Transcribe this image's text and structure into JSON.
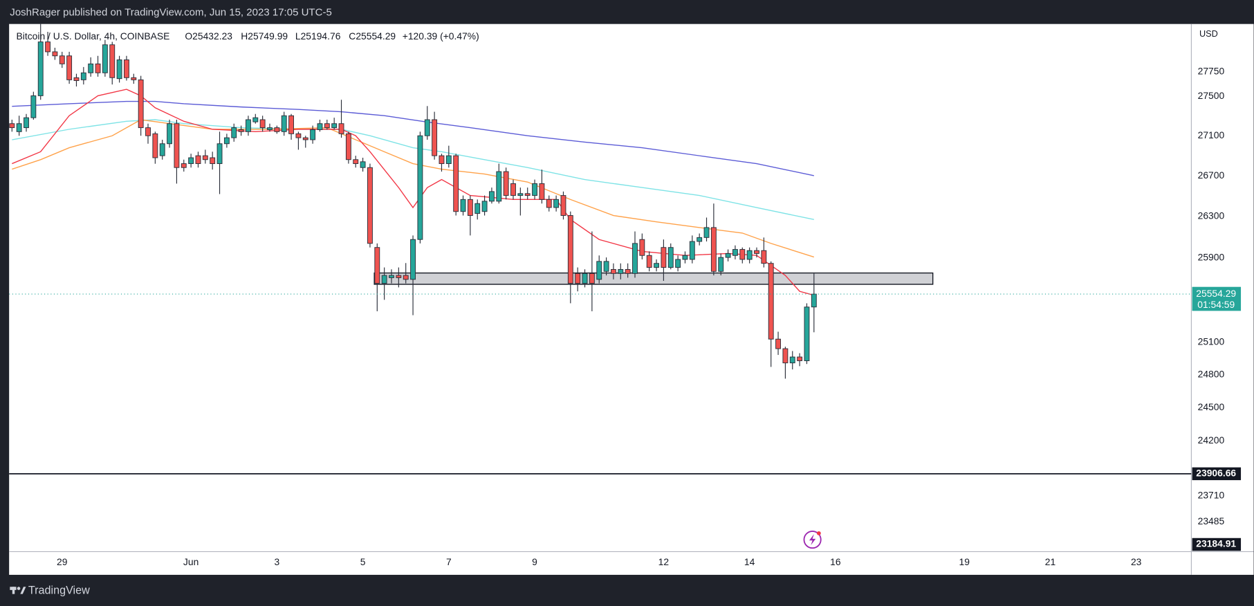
{
  "header": {
    "title": "JoshRager published on TradingView.com, Jun 15, 2023 17:05 UTC-5"
  },
  "footer": {
    "brand": "TradingView"
  },
  "chart_data": {
    "type": "candlestick",
    "log": true,
    "grid": false,
    "symbol": "Bitcoin / U.S. Dollar, 4h, COINBASE",
    "ohlc": [
      "O25432.23",
      "H25749.99",
      "L25194.76",
      "C25554.29"
    ],
    "change": "+120.39 (+0.47%)",
    "currency": "USD",
    "up_color": "#26a69a",
    "down_color": "#ef5350",
    "ylim": [
      23226,
      28247
    ],
    "yticks": [
      27750,
      27500,
      27100,
      26700,
      26300,
      25900,
      25100,
      24800,
      24500,
      24200,
      23710,
      23485
    ],
    "xlim": [
      -0.4,
      164.7
    ],
    "xticks": [
      {
        "value": 7,
        "label": "29"
      },
      {
        "value": 25,
        "label": "Jun"
      },
      {
        "value": 37,
        "label": "3"
      },
      {
        "value": 49,
        "label": "5"
      },
      {
        "value": 61,
        "label": "7"
      },
      {
        "value": 73,
        "label": "9"
      },
      {
        "value": 91,
        "label": "12"
      },
      {
        "value": 103,
        "label": "14"
      },
      {
        "value": 115,
        "label": "16"
      },
      {
        "value": 133,
        "label": "19"
      },
      {
        "value": 145,
        "label": "21"
      },
      {
        "value": 157,
        "label": "23"
      }
    ],
    "last_price": 25554.29,
    "countdown": "01:54:59",
    "hline": 23906.66,
    "bottom_label": 23184.91,
    "zone": {
      "from": 50.6,
      "to": 128.6,
      "top": 25755,
      "bottom": 25647
    },
    "series": [
      {
        "color": "#5b5bd6",
        "x": [
          0,
          8,
          16,
          20,
          24,
          32,
          40,
          46,
          52,
          58,
          64,
          72,
          80,
          88,
          96,
          104,
          112
        ],
        "values": [
          27397,
          27424,
          27448,
          27448,
          27424,
          27391,
          27366,
          27342,
          27302,
          27238,
          27181,
          27100,
          27036,
          26980,
          26900,
          26821,
          26702
        ]
      },
      {
        "color": "#7ee3e6",
        "x": [
          0,
          8,
          16,
          20,
          24,
          32,
          40,
          46,
          50,
          56,
          60,
          66,
          72,
          80,
          88,
          96,
          104,
          112
        ],
        "values": [
          27060,
          27165,
          27246,
          27262,
          27222,
          27181,
          27165,
          27165,
          27100,
          26980,
          26940,
          26861,
          26782,
          26663,
          26584,
          26506,
          26388,
          26271
        ]
      },
      {
        "color": "#ffa24a",
        "x": [
          0,
          4,
          8,
          14,
          18,
          22,
          28,
          36,
          44,
          48,
          52,
          56,
          60,
          66,
          72,
          78,
          84,
          90,
          96,
          102,
          106,
          112
        ],
        "values": [
          26766,
          26861,
          26980,
          27100,
          27262,
          27222,
          27165,
          27165,
          27181,
          27060,
          26940,
          26821,
          26766,
          26718,
          26639,
          26467,
          26310,
          26248,
          26193,
          26139,
          26039,
          25908
        ]
      },
      {
        "color": "#f23645",
        "x": [
          0,
          4,
          8,
          12,
          16,
          18,
          20,
          24,
          28,
          34,
          40,
          46,
          48,
          50,
          54,
          56,
          58,
          60,
          64,
          70,
          76,
          78,
          82,
          88,
          94,
          100,
          104,
          108,
          110,
          112
        ],
        "values": [
          26821,
          26940,
          27302,
          27505,
          27571,
          27505,
          27383,
          27246,
          27165,
          27141,
          27165,
          27165,
          27100,
          26940,
          26584,
          26388,
          26584,
          26663,
          26506,
          26467,
          26467,
          26271,
          26077,
          25962,
          25923,
          25942,
          25923,
          25732,
          25580,
          25543
        ]
      }
    ],
    "candles": [
      {
        "open": 27222,
        "high": 27262,
        "low": 27141,
        "close": 27181
      },
      {
        "open": 27141,
        "high": 27302,
        "low": 27100,
        "close": 27222
      },
      {
        "open": 27181,
        "high": 27320,
        "low": 27141,
        "close": 27282
      },
      {
        "open": 27282,
        "high": 27546,
        "low": 27262,
        "close": 27505
      },
      {
        "open": 27505,
        "high": 28400,
        "low": 27464,
        "close": 28060
      },
      {
        "open": 28060,
        "high": 28165,
        "low": 27915,
        "close": 27957
      },
      {
        "open": 27957,
        "high": 27999,
        "low": 27874,
        "close": 27915
      },
      {
        "open": 27915,
        "high": 27957,
        "low": 27791,
        "close": 27832
      },
      {
        "open": 27915,
        "high": 27957,
        "low": 27627,
        "close": 27668
      },
      {
        "open": 27690,
        "high": 27730,
        "low": 27600,
        "close": 27660
      },
      {
        "open": 27668,
        "high": 27800,
        "low": 27620,
        "close": 27740
      },
      {
        "open": 27740,
        "high": 27900,
        "low": 27700,
        "close": 27832
      },
      {
        "open": 27832,
        "high": 27915,
        "low": 27700,
        "close": 27740
      },
      {
        "open": 27740,
        "high": 28081,
        "low": 27700,
        "close": 28030
      },
      {
        "open": 28030,
        "high": 28060,
        "low": 27620,
        "close": 27690
      },
      {
        "open": 27680,
        "high": 27915,
        "low": 27640,
        "close": 27874
      },
      {
        "open": 27874,
        "high": 27915,
        "low": 27660,
        "close": 27690
      },
      {
        "open": 27690,
        "high": 27730,
        "low": 27627,
        "close": 27668
      },
      {
        "open": 27668,
        "high": 27709,
        "low": 27100,
        "close": 27181
      },
      {
        "open": 27181,
        "high": 27222,
        "low": 27020,
        "close": 27100
      },
      {
        "open": 27120,
        "high": 27141,
        "low": 26820,
        "close": 26880
      },
      {
        "open": 26900,
        "high": 27060,
        "low": 26861,
        "close": 27020
      },
      {
        "open": 27020,
        "high": 27262,
        "low": 26980,
        "close": 27222
      },
      {
        "open": 27222,
        "high": 27262,
        "low": 26623,
        "close": 26782
      },
      {
        "open": 26821,
        "high": 26861,
        "low": 26742,
        "close": 26782
      },
      {
        "open": 26821,
        "high": 26920,
        "low": 26782,
        "close": 26880
      },
      {
        "open": 26900,
        "high": 26940,
        "low": 26782,
        "close": 26821
      },
      {
        "open": 26900,
        "high": 26960,
        "low": 26821,
        "close": 26861
      },
      {
        "open": 26880,
        "high": 26940,
        "low": 26762,
        "close": 26821
      },
      {
        "open": 26821,
        "high": 27141,
        "low": 26520,
        "close": 27020
      },
      {
        "open": 27020,
        "high": 27120,
        "low": 26980,
        "close": 27080
      },
      {
        "open": 27080,
        "high": 27222,
        "low": 27040,
        "close": 27181
      },
      {
        "open": 27161,
        "high": 27202,
        "low": 27100,
        "close": 27141
      },
      {
        "open": 27141,
        "high": 27302,
        "low": 27100,
        "close": 27262
      },
      {
        "open": 27240,
        "high": 27320,
        "low": 27222,
        "close": 27282
      },
      {
        "open": 27262,
        "high": 27302,
        "low": 27141,
        "close": 27181
      },
      {
        "open": 27161,
        "high": 27222,
        "low": 27141,
        "close": 27181
      },
      {
        "open": 27181,
        "high": 27202,
        "low": 27120,
        "close": 27141
      },
      {
        "open": 27141,
        "high": 27342,
        "low": 27100,
        "close": 27302
      },
      {
        "open": 27302,
        "high": 27320,
        "low": 27060,
        "close": 27120
      },
      {
        "open": 27120,
        "high": 27141,
        "low": 26960,
        "close": 27080
      },
      {
        "open": 27080,
        "high": 27100,
        "low": 26980,
        "close": 27060
      },
      {
        "open": 27060,
        "high": 27202,
        "low": 27020,
        "close": 27161
      },
      {
        "open": 27161,
        "high": 27262,
        "low": 27141,
        "close": 27222
      },
      {
        "open": 27222,
        "high": 27262,
        "low": 27161,
        "close": 27181
      },
      {
        "open": 27181,
        "high": 27282,
        "low": 27161,
        "close": 27222
      },
      {
        "open": 27222,
        "high": 27464,
        "low": 27080,
        "close": 27120
      },
      {
        "open": 27120,
        "high": 27141,
        "low": 26821,
        "close": 26861
      },
      {
        "open": 26861,
        "high": 26900,
        "low": 26782,
        "close": 26821
      },
      {
        "open": 26782,
        "high": 26880,
        "low": 26742,
        "close": 26840
      },
      {
        "open": 26782,
        "high": 26821,
        "low": 26000,
        "close": 26039
      },
      {
        "open": 26000,
        "high": 26039,
        "low": 25392,
        "close": 25656
      },
      {
        "open": 25656,
        "high": 25808,
        "low": 25500,
        "close": 25732
      },
      {
        "open": 25710,
        "high": 25790,
        "low": 25656,
        "close": 25732
      },
      {
        "open": 25732,
        "high": 25808,
        "low": 25618,
        "close": 25710
      },
      {
        "open": 25732,
        "high": 25850,
        "low": 25656,
        "close": 25694
      },
      {
        "open": 25694,
        "high": 26116,
        "low": 25355,
        "close": 26077
      },
      {
        "open": 26077,
        "high": 27141,
        "low": 26039,
        "close": 27100
      },
      {
        "open": 27100,
        "high": 27400,
        "low": 27060,
        "close": 27262
      },
      {
        "open": 27262,
        "high": 27342,
        "low": 26861,
        "close": 26900
      },
      {
        "open": 26900,
        "high": 26920,
        "low": 26742,
        "close": 26821
      },
      {
        "open": 26821,
        "high": 27000,
        "low": 26782,
        "close": 26900
      },
      {
        "open": 26900,
        "high": 26920,
        "low": 26310,
        "close": 26349
      },
      {
        "open": 26349,
        "high": 26506,
        "low": 26310,
        "close": 26467
      },
      {
        "open": 26467,
        "high": 26506,
        "low": 26116,
        "close": 26310
      },
      {
        "open": 26330,
        "high": 26467,
        "low": 26271,
        "close": 26427
      },
      {
        "open": 26349,
        "high": 26506,
        "low": 26310,
        "close": 26450
      },
      {
        "open": 26450,
        "high": 26584,
        "low": 26427,
        "close": 26545
      },
      {
        "open": 26450,
        "high": 26821,
        "low": 26427,
        "close": 26742
      },
      {
        "open": 26742,
        "high": 26782,
        "low": 26467,
        "close": 26506
      },
      {
        "open": 26623,
        "high": 26663,
        "low": 26467,
        "close": 26506
      },
      {
        "open": 26506,
        "high": 26584,
        "low": 26310,
        "close": 26525
      },
      {
        "open": 26525,
        "high": 26584,
        "low": 26467,
        "close": 26506
      },
      {
        "open": 26506,
        "high": 26663,
        "low": 26467,
        "close": 26623
      },
      {
        "open": 26623,
        "high": 26762,
        "low": 26427,
        "close": 26467
      },
      {
        "open": 26467,
        "high": 26506,
        "low": 26349,
        "close": 26388
      },
      {
        "open": 26388,
        "high": 26506,
        "low": 26349,
        "close": 26467
      },
      {
        "open": 26506,
        "high": 26545,
        "low": 26271,
        "close": 26310
      },
      {
        "open": 26310,
        "high": 26349,
        "low": 25467,
        "close": 25656
      },
      {
        "open": 25750,
        "high": 25808,
        "low": 25580,
        "close": 25656
      },
      {
        "open": 25656,
        "high": 25790,
        "low": 25618,
        "close": 25750
      },
      {
        "open": 25750,
        "high": 26155,
        "low": 25392,
        "close": 25656
      },
      {
        "open": 25694,
        "high": 25923,
        "low": 25656,
        "close": 25866
      },
      {
        "open": 25770,
        "high": 25904,
        "low": 25732,
        "close": 25866
      },
      {
        "open": 25789,
        "high": 25847,
        "low": 25694,
        "close": 25750
      },
      {
        "open": 25750,
        "high": 25847,
        "low": 25694,
        "close": 25789
      },
      {
        "open": 25789,
        "high": 25847,
        "low": 25710,
        "close": 25750
      },
      {
        "open": 25750,
        "high": 26155,
        "low": 25710,
        "close": 26039
      },
      {
        "open": 26077,
        "high": 26135,
        "low": 25885,
        "close": 25923
      },
      {
        "open": 25923,
        "high": 25962,
        "low": 25770,
        "close": 25808
      },
      {
        "open": 25808,
        "high": 25885,
        "low": 25770,
        "close": 25847
      },
      {
        "open": 26000,
        "high": 26077,
        "low": 25680,
        "close": 25808
      },
      {
        "open": 25808,
        "high": 26039,
        "low": 25790,
        "close": 26000
      },
      {
        "open": 25808,
        "high": 25923,
        "low": 25770,
        "close": 25885
      },
      {
        "open": 25885,
        "high": 25962,
        "low": 25847,
        "close": 25923
      },
      {
        "open": 25885,
        "high": 26116,
        "low": 25847,
        "close": 26058
      },
      {
        "open": 26058,
        "high": 26135,
        "low": 26020,
        "close": 26096
      },
      {
        "open": 26096,
        "high": 26290,
        "low": 26058,
        "close": 26193
      },
      {
        "open": 26193,
        "high": 26427,
        "low": 25732,
        "close": 25770
      },
      {
        "open": 25770,
        "high": 25942,
        "low": 25732,
        "close": 25904
      },
      {
        "open": 25904,
        "high": 25981,
        "low": 25866,
        "close": 25942
      },
      {
        "open": 25923,
        "high": 26020,
        "low": 25885,
        "close": 25981
      },
      {
        "open": 25981,
        "high": 26000,
        "low": 25847,
        "close": 25885
      },
      {
        "open": 25885,
        "high": 26000,
        "low": 25847,
        "close": 25970
      },
      {
        "open": 25970,
        "high": 26000,
        "low": 25904,
        "close": 25942
      },
      {
        "open": 25970,
        "high": 26096,
        "low": 25808,
        "close": 25847
      },
      {
        "open": 25847,
        "high": 25866,
        "low": 24873,
        "close": 25131
      },
      {
        "open": 25131,
        "high": 25200,
        "low": 24984,
        "close": 25042
      },
      {
        "open": 25042,
        "high": 25060,
        "low": 24765,
        "close": 24910
      },
      {
        "open": 24910,
        "high": 25020,
        "low": 24850,
        "close": 24965
      },
      {
        "open": 24965,
        "high": 25000,
        "low": 24880,
        "close": 24930
      },
      {
        "open": 24930,
        "high": 25467,
        "low": 24900,
        "close": 25432
      },
      {
        "open": 25432.23,
        "high": 25749.99,
        "low": 25194.76,
        "close": 25554.29
      }
    ]
  }
}
